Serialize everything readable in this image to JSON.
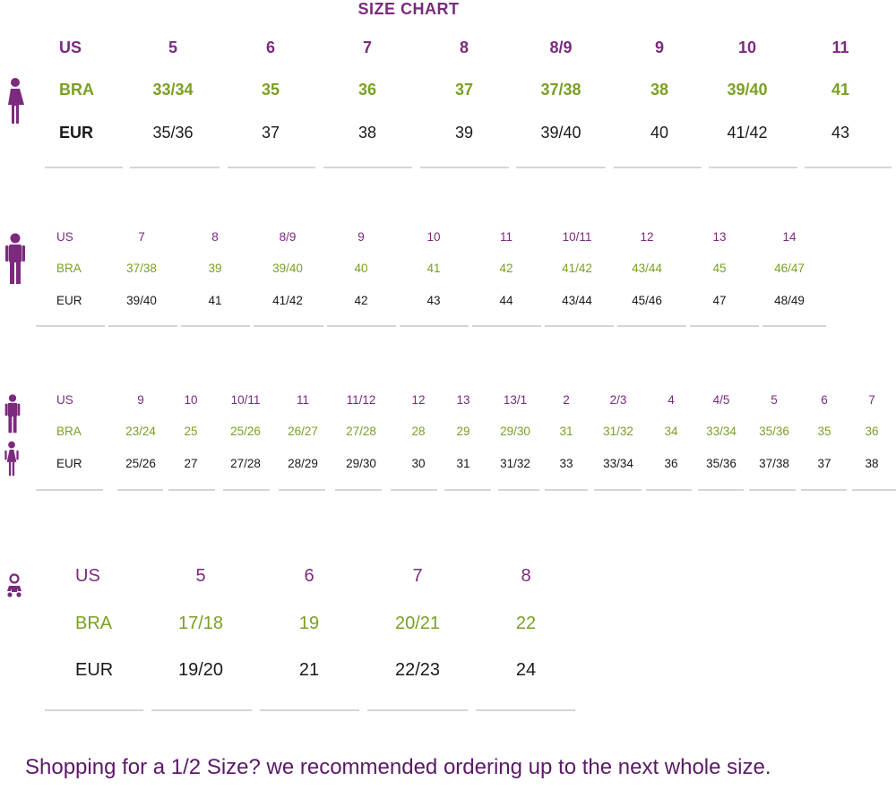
{
  "title": "SIZE CHART",
  "colors": {
    "us": "#7b2a7e",
    "bra": "#7aa023",
    "eur": "#1a1a1a",
    "icon": "#7b2a7e"
  },
  "tables": [
    {
      "group": "women",
      "icons": [
        "woman-icon"
      ],
      "labels": {
        "us": "US",
        "bra": "BRA",
        "eur": "EUR"
      },
      "us": [
        "5",
        "6",
        "7",
        "8",
        "8/9",
        "9",
        "10",
        "11"
      ],
      "bra": [
        "33/34",
        "35",
        "36",
        "37",
        "37/38",
        "38",
        "39/40",
        "41"
      ],
      "eur": [
        "35/36",
        "37",
        "38",
        "39",
        "39/40",
        "40",
        "41/42",
        "43"
      ]
    },
    {
      "group": "men",
      "icons": [
        "man-icon"
      ],
      "labels": {
        "us": "US",
        "bra": "BRA",
        "eur": "EUR"
      },
      "us": [
        "7",
        "8",
        "8/9",
        "9",
        "10",
        "11",
        "10/11",
        "12",
        "13",
        "14"
      ],
      "bra": [
        "37/38",
        "39",
        "39/40",
        "40",
        "41",
        "42",
        "41/42",
        "43/44",
        "45",
        "46/47"
      ],
      "eur": [
        "39/40",
        "41",
        "41/42",
        "42",
        "43",
        "44",
        "43/44",
        "45/46",
        "47",
        "48/49"
      ]
    },
    {
      "group": "kids",
      "icons": [
        "boy-icon",
        "girl-icon"
      ],
      "labels": {
        "us": "US",
        "bra": "BRA",
        "eur": "EUR"
      },
      "us": [
        "9",
        "10",
        "10/11",
        "11",
        "11/12",
        "12",
        "13",
        "13/1",
        "2",
        "2/3",
        "4",
        "4/5",
        "5",
        "6",
        "7"
      ],
      "bra": [
        "23/24",
        "25",
        "25/26",
        "26/27",
        "27/28",
        "28",
        "29",
        "29/30",
        "31",
        "31/32",
        "34",
        "33/34",
        "35/36",
        "35",
        "36"
      ],
      "eur": [
        "25/26",
        "27",
        "27/28",
        "28/29",
        "29/30",
        "30",
        "31",
        "31/32",
        "33",
        "33/34",
        "36",
        "35/36",
        "37/38",
        "37",
        "38"
      ]
    },
    {
      "group": "baby",
      "icons": [
        "baby-icon"
      ],
      "labels": {
        "us": "US",
        "bra": "BRA",
        "eur": "EUR"
      },
      "us": [
        "5",
        "6",
        "7",
        "8"
      ],
      "bra": [
        "17/18",
        "19",
        "20/21",
        "22"
      ],
      "eur": [
        "19/20",
        "21",
        "22/23",
        "24"
      ]
    }
  ],
  "footer": "Shopping for a 1/2 Size? we recommended ordering up to the next whole size."
}
